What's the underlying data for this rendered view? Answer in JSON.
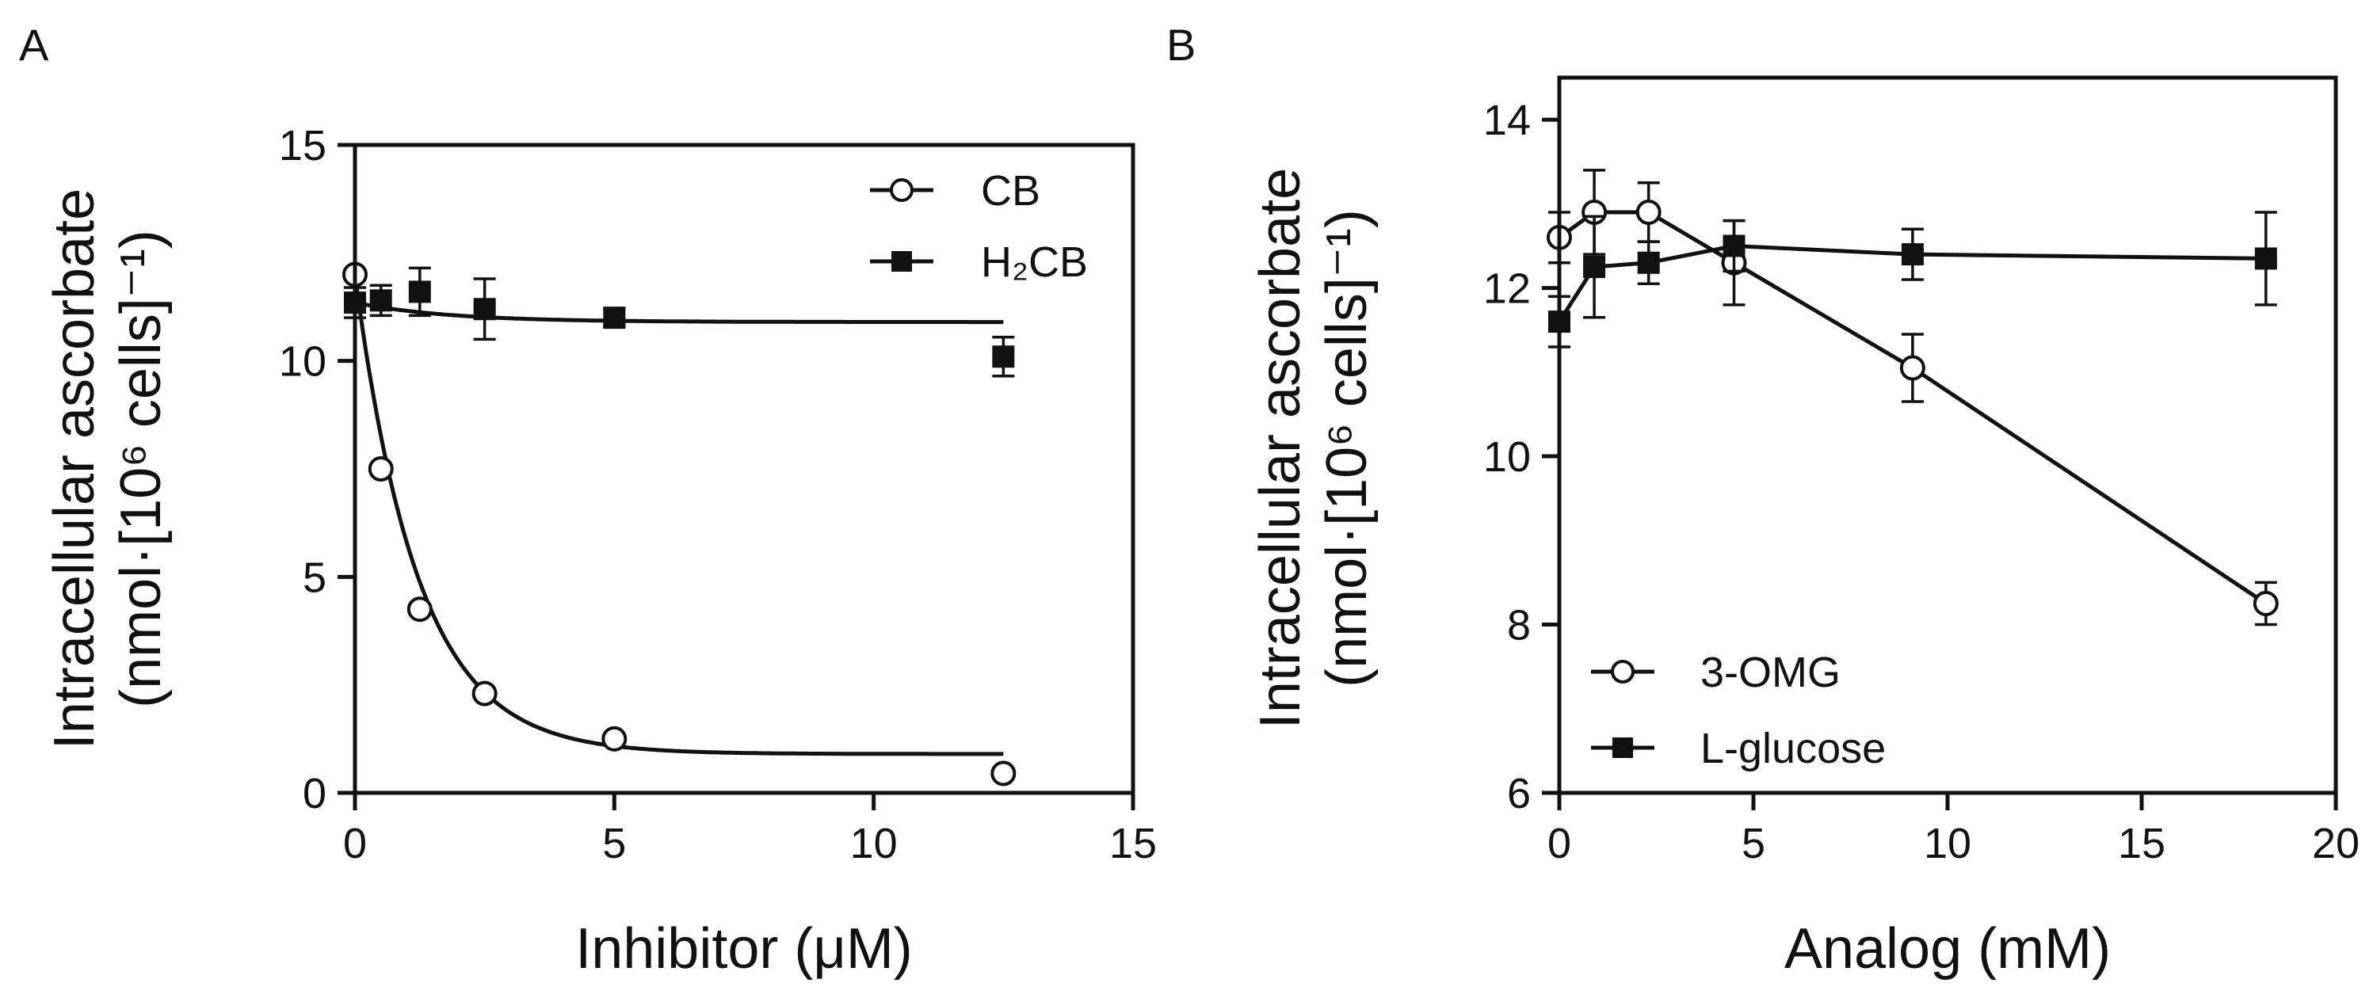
{
  "chart_data": [
    {
      "panel": "A",
      "type": "scatter",
      "xlabel": "Inhibitor (μM)",
      "ylabel_line1": "Intracellular ascorbate",
      "ylabel_line2": "(nmol·[10⁶ cells]⁻¹)",
      "xlim": [
        0,
        15
      ],
      "ylim": [
        0,
        15
      ],
      "xticks": [
        "0",
        "5",
        "10",
        "15"
      ],
      "yticks": [
        "0",
        "5",
        "10",
        "15"
      ],
      "legend_position": "top-right",
      "series": [
        {
          "name": "CB",
          "marker": "open-circle",
          "line": "exponential-fit",
          "x": [
            0,
            0.5,
            1.25,
            2.5,
            5,
            12.5
          ],
          "y": [
            12.0,
            7.5,
            4.25,
            2.3,
            1.25,
            0.45
          ],
          "err": [
            0,
            0,
            0,
            0,
            0,
            0
          ]
        },
        {
          "name": "H₂CB",
          "marker": "filled-square",
          "line": "exponential-fit",
          "x": [
            0,
            0.5,
            1.25,
            2.5,
            5,
            12.5
          ],
          "y": [
            11.35,
            11.4,
            11.6,
            11.2,
            11.0,
            10.1
          ],
          "err": [
            0.35,
            0.35,
            0.55,
            0.7,
            0.2,
            0.45
          ]
        }
      ]
    },
    {
      "panel": "B",
      "type": "line",
      "xlabel": "Analog (mM)",
      "ylabel_line1": "Intracellular ascorbate",
      "ylabel_line2": "(nmol·[10⁶ cells]⁻¹)",
      "xlim": [
        0,
        20
      ],
      "ylim": [
        6,
        14.5
      ],
      "xticks": [
        "0",
        "5",
        "10",
        "15",
        "20"
      ],
      "yticks": [
        "6",
        "8",
        "10",
        "12",
        "14"
      ],
      "legend_position": "bottom-left",
      "series": [
        {
          "name": "3-OMG",
          "marker": "open-circle",
          "x": [
            0,
            0.9,
            2.3,
            4.5,
            9.1,
            18.2
          ],
          "y": [
            12.6,
            12.9,
            12.9,
            12.3,
            11.05,
            8.25
          ],
          "err": [
            0.3,
            0.5,
            0.35,
            0.5,
            0.4,
            0.25
          ]
        },
        {
          "name": "L-glucose",
          "marker": "filled-square",
          "x": [
            0,
            0.9,
            2.3,
            4.5,
            9.1,
            18.2
          ],
          "y": [
            11.6,
            12.25,
            12.3,
            12.5,
            12.4,
            12.35
          ],
          "err": [
            0.3,
            0.6,
            0.25,
            0.3,
            0.3,
            0.55
          ]
        }
      ]
    }
  ]
}
